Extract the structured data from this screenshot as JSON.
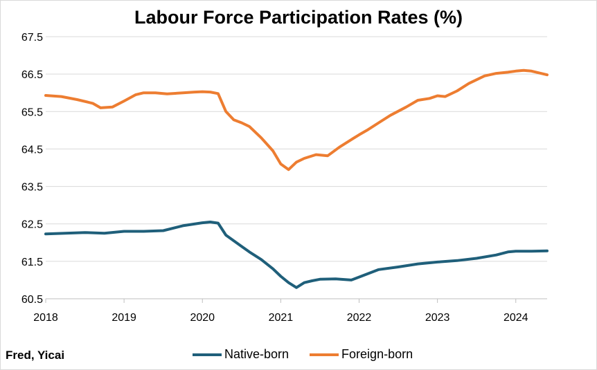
{
  "chart_data": {
    "type": "line",
    "title": "Labour Force Participation Rates (%)",
    "source": "Fred, Yicai",
    "xlabel": "",
    "ylabel": "",
    "ylim": [
      60.5,
      67.5
    ],
    "yticks": [
      "67.5",
      "66.5",
      "65.5",
      "64.5",
      "63.5",
      "62.5",
      "61.5",
      "60.5"
    ],
    "xticks": [
      "2018",
      "2019",
      "2020",
      "2021",
      "2022",
      "2023",
      "2024"
    ],
    "xlim": [
      2018.0,
      2024.4
    ],
    "grid": "horizontal",
    "legend": "bottom",
    "series": [
      {
        "name": "Native-born",
        "color": "#1f5f7a",
        "x": [
          2018.0,
          2018.25,
          2018.5,
          2018.75,
          2019.0,
          2019.25,
          2019.5,
          2019.75,
          2020.0,
          2020.1,
          2020.2,
          2020.3,
          2020.4,
          2020.5,
          2020.6,
          2020.75,
          2020.9,
          2021.0,
          2021.1,
          2021.2,
          2021.3,
          2021.4,
          2021.5,
          2021.7,
          2021.9,
          2022.0,
          2022.25,
          2022.5,
          2022.75,
          2023.0,
          2023.25,
          2023.5,
          2023.75,
          2023.9,
          2024.0,
          2024.2,
          2024.4
        ],
        "values": [
          62.23,
          62.25,
          62.27,
          62.25,
          62.3,
          62.3,
          62.32,
          62.45,
          62.53,
          62.55,
          62.52,
          62.2,
          62.05,
          61.9,
          61.75,
          61.55,
          61.3,
          61.1,
          60.93,
          60.8,
          60.93,
          60.98,
          61.02,
          61.03,
          61.0,
          61.08,
          61.28,
          61.35,
          61.43,
          61.48,
          61.52,
          61.58,
          61.67,
          61.75,
          61.77,
          61.77,
          61.78
        ]
      },
      {
        "name": "Foreign-born",
        "color": "#ed7d31",
        "x": [
          2018.0,
          2018.2,
          2018.4,
          2018.6,
          2018.7,
          2018.85,
          2019.0,
          2019.15,
          2019.25,
          2019.4,
          2019.55,
          2019.75,
          2019.9,
          2020.0,
          2020.1,
          2020.2,
          2020.3,
          2020.4,
          2020.5,
          2020.6,
          2020.75,
          2020.9,
          2021.0,
          2021.1,
          2021.2,
          2021.3,
          2021.45,
          2021.6,
          2021.75,
          2021.9,
          2022.0,
          2022.1,
          2022.25,
          2022.4,
          2022.6,
          2022.75,
          2022.9,
          2023.0,
          2023.1,
          2023.25,
          2023.4,
          2023.6,
          2023.75,
          2023.9,
          2024.0,
          2024.1,
          2024.2,
          2024.4
        ],
        "values": [
          65.93,
          65.9,
          65.82,
          65.72,
          65.6,
          65.62,
          65.78,
          65.95,
          66.0,
          66.0,
          65.97,
          66.0,
          66.02,
          66.03,
          66.02,
          65.98,
          65.5,
          65.28,
          65.2,
          65.1,
          64.8,
          64.45,
          64.1,
          63.95,
          64.15,
          64.25,
          64.35,
          64.32,
          64.55,
          64.75,
          64.88,
          65.0,
          65.2,
          65.4,
          65.62,
          65.8,
          65.85,
          65.92,
          65.9,
          66.05,
          66.25,
          66.45,
          66.52,
          66.55,
          66.58,
          66.6,
          66.58,
          66.48
        ]
      }
    ]
  }
}
